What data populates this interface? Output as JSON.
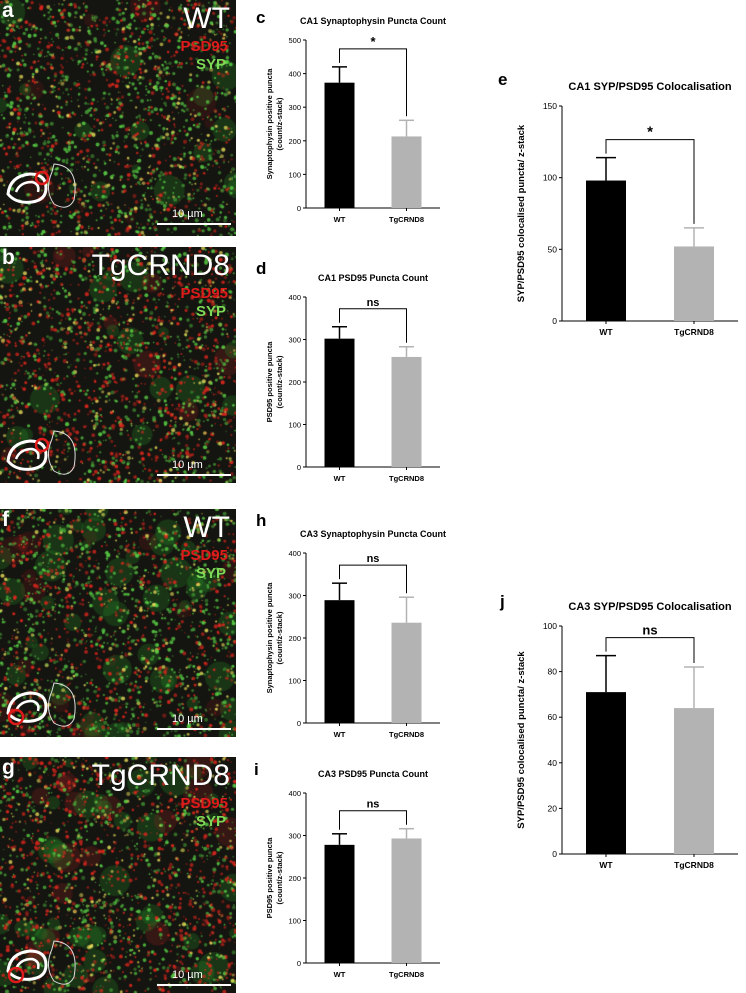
{
  "images": [
    {
      "letter": "a",
      "group": "WT",
      "psd95": "PSD95",
      "syp": "SYP",
      "scale": "10 µm"
    },
    {
      "letter": "b",
      "group": "TgCRND8",
      "psd95": "PSD95",
      "syp": "SYP",
      "scale": "10 µm"
    },
    {
      "letter": "f",
      "group": "WT",
      "psd95": "PSD95",
      "syp": "SYP",
      "scale": "10 µm"
    },
    {
      "letter": "g",
      "group": "TgCRND8",
      "psd95": "PSD95",
      "syp": "SYP",
      "scale": "10 µm"
    }
  ],
  "chart_data": [
    {
      "letter": "c",
      "type": "bar",
      "title": "CA1 Synaptophysin Puncta Count",
      "ylabel": [
        "Synaptophysin positive puncta",
        "(count/z-stack)"
      ],
      "categories": [
        "WT",
        "TgCRND8"
      ],
      "values": [
        373,
        213
      ],
      "errors": [
        47,
        48
      ],
      "ylim": [
        0,
        500
      ],
      "yticks": [
        0,
        100,
        200,
        300,
        400,
        500
      ],
      "significance": "*",
      "colors": [
        "#000000",
        "#b3b3b3"
      ]
    },
    {
      "letter": "d",
      "type": "bar",
      "title": "CA1 PSD95 Puncta Count",
      "ylabel": [
        "PSD95 positive puncta",
        "(count/z-stack)"
      ],
      "categories": [
        "WT",
        "TgCRND8"
      ],
      "values": [
        302,
        259
      ],
      "errors": [
        28,
        24
      ],
      "ylim": [
        0,
        400
      ],
      "yticks": [
        0,
        100,
        200,
        300,
        400
      ],
      "significance": "ns",
      "colors": [
        "#000000",
        "#b3b3b3"
      ]
    },
    {
      "letter": "e",
      "type": "bar",
      "title": "CA1 SYP/PSD95 Colocalisation",
      "ylabel": [
        "SYP/PSD95 colocalised puncta/ z-stack"
      ],
      "categories": [
        "WT",
        "TgCRND8"
      ],
      "values": [
        98,
        52
      ],
      "errors": [
        16,
        13
      ],
      "ylim": [
        0,
        150
      ],
      "yticks": [
        0,
        50,
        100,
        150
      ],
      "significance": "*",
      "colors": [
        "#000000",
        "#b3b3b3"
      ]
    },
    {
      "letter": "h",
      "type": "bar",
      "title": "CA3 Synaptophysin Puncta Count",
      "ylabel": [
        "Synaptophysin positive puncta",
        "(count/z-stack)"
      ],
      "categories": [
        "WT",
        "TgCRND8"
      ],
      "values": [
        289,
        236
      ],
      "errors": [
        40,
        60
      ],
      "ylim": [
        0,
        400
      ],
      "yticks": [
        0,
        100,
        200,
        300,
        400
      ],
      "significance": "ns",
      "colors": [
        "#000000",
        "#b3b3b3"
      ]
    },
    {
      "letter": "i",
      "type": "bar",
      "title": "CA3 PSD95 Puncta Count",
      "ylabel": [
        "PSD95 positive puncta",
        "(count/z-stack)"
      ],
      "categories": [
        "WT",
        "TgCRND8"
      ],
      "values": [
        278,
        293
      ],
      "errors": [
        26,
        23
      ],
      "ylim": [
        0,
        400
      ],
      "yticks": [
        0,
        100,
        200,
        300,
        400
      ],
      "significance": "ns",
      "colors": [
        "#000000",
        "#b3b3b3"
      ]
    },
    {
      "letter": "j",
      "type": "bar",
      "title": "CA3 SYP/PSD95 Colocalisation",
      "ylabel": [
        "SYP/PSD95 colocalised puncta/ z-stack"
      ],
      "categories": [
        "WT",
        "TgCRND8"
      ],
      "values": [
        71,
        64
      ],
      "errors": [
        16,
        18
      ],
      "ylim": [
        0,
        100
      ],
      "yticks": [
        0,
        20,
        40,
        60,
        80,
        100
      ],
      "significance": "ns",
      "colors": [
        "#000000",
        "#b3b3b3"
      ]
    }
  ]
}
